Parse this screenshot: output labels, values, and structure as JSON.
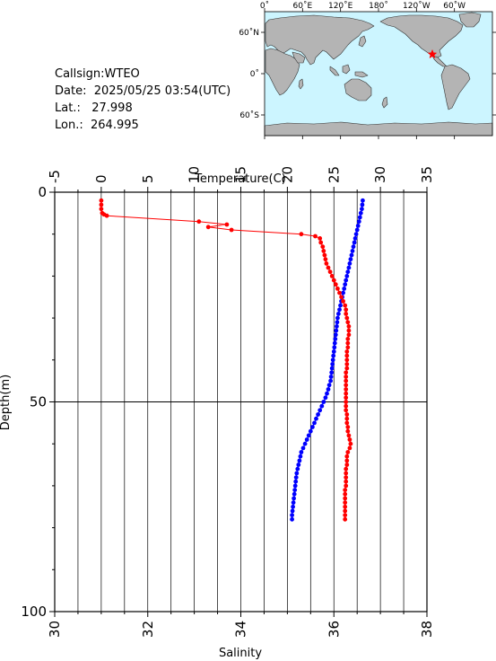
{
  "header": {
    "callsign_label": "Callsign:",
    "callsign": "WTEO",
    "date_label": "Date:",
    "date": "2025/05/25 03:54(UTC)",
    "lat_label": "Lat.:",
    "lat": "27.998",
    "lon_label": "Lon.:",
    "lon": "264.995"
  },
  "map": {
    "lon_ticks": [
      "0˚",
      "60˚E",
      "120˚E",
      "180˚",
      "120˚W",
      "60˚W"
    ],
    "lat_ticks": [
      "60˚N",
      "0˚",
      "60˚S"
    ],
    "ocean_color": "#ccf5ff",
    "land_color": "#b4b4b4",
    "marker_color": "#ff0000",
    "marker_icon": "star-icon"
  },
  "chart_data": {
    "type": "line",
    "ylabel": "Depth(m)",
    "ylim": [
      100,
      0
    ],
    "yticks": [
      "0",
      "50",
      "100"
    ],
    "grid": true,
    "temperature": {
      "xlabel": "Temperature(C)",
      "xlim": [
        -5,
        35
      ],
      "xticks": [
        "-5",
        "0",
        "5",
        "10",
        "15",
        "20",
        "25",
        "30",
        "35"
      ],
      "color": "#ff0000",
      "depth": [
        2,
        3,
        4,
        5,
        5.3,
        5.6,
        7,
        7.7,
        8.3,
        9,
        10,
        10.5,
        11,
        12,
        13,
        14,
        15,
        16,
        17,
        18,
        19,
        20,
        21,
        22,
        23,
        24,
        25,
        26,
        27,
        28,
        29,
        30,
        31,
        32,
        33,
        34,
        35,
        36,
        37,
        38,
        39,
        40,
        41,
        42,
        43,
        44,
        45,
        46,
        47,
        48,
        49,
        50,
        51,
        52,
        53,
        54,
        55,
        56,
        57,
        58,
        59,
        60,
        61,
        62,
        63,
        64,
        65,
        66,
        67,
        68,
        69,
        70,
        71,
        72,
        73,
        74,
        75,
        76,
        77,
        78
      ],
      "values": [
        0.0,
        0.0,
        0.0,
        0.1,
        0.3,
        0.6,
        10.5,
        13.5,
        11.5,
        14.0,
        21.5,
        23.0,
        23.5,
        23.6,
        23.8,
        23.9,
        24.0,
        24.1,
        24.2,
        24.4,
        24.6,
        24.8,
        25.0,
        25.2,
        25.4,
        25.6,
        25.8,
        26.0,
        26.2,
        26.3,
        26.3,
        26.4,
        26.5,
        26.6,
        26.6,
        26.6,
        26.5,
        26.5,
        26.5,
        26.4,
        26.4,
        26.4,
        26.4,
        26.4,
        26.3,
        26.3,
        26.3,
        26.3,
        26.3,
        26.3,
        26.3,
        26.3,
        26.3,
        26.3,
        26.4,
        26.4,
        26.4,
        26.5,
        26.5,
        26.6,
        26.7,
        26.8,
        26.7,
        26.5,
        26.4,
        26.4,
        26.4,
        26.3,
        26.3,
        26.3,
        26.3,
        26.3,
        26.2,
        26.2,
        26.2,
        26.2,
        26.2,
        26.2,
        26.2,
        26.2
      ]
    },
    "salinity": {
      "xlabel": "Salinity",
      "xlim": [
        30,
        38
      ],
      "xticks": [
        "30",
        "32",
        "34",
        "36",
        "38"
      ],
      "color": "#0000ff",
      "depth": [
        2,
        3,
        4,
        5,
        6,
        7,
        8,
        9,
        10,
        11,
        12,
        13,
        14,
        15,
        16,
        17,
        18,
        19,
        20,
        21,
        22,
        23,
        24,
        25,
        26,
        27,
        28,
        29,
        30,
        31,
        32,
        33,
        34,
        35,
        36,
        37,
        38,
        39,
        40,
        41,
        42,
        43,
        44,
        45,
        46,
        47,
        48,
        49,
        50,
        51,
        52,
        53,
        54,
        55,
        56,
        57,
        58,
        59,
        60,
        61,
        62,
        63,
        64,
        65,
        66,
        67,
        68,
        69,
        70,
        71,
        72,
        73,
        74,
        75,
        76,
        77,
        78
      ],
      "values": [
        36.62,
        36.61,
        36.6,
        36.58,
        36.56,
        36.54,
        36.52,
        36.5,
        36.48,
        36.46,
        36.44,
        36.42,
        36.4,
        36.38,
        36.36,
        36.34,
        36.32,
        36.3,
        36.28,
        36.26,
        36.24,
        36.22,
        36.2,
        36.18,
        36.16,
        36.14,
        36.12,
        36.1,
        36.08,
        36.07,
        36.06,
        36.05,
        36.04,
        36.03,
        36.02,
        36.01,
        36.0,
        35.99,
        35.98,
        35.97,
        35.96,
        35.95,
        35.94,
        35.93,
        35.9,
        35.88,
        35.85,
        35.82,
        35.78,
        35.74,
        35.7,
        35.66,
        35.62,
        35.58,
        35.54,
        35.5,
        35.46,
        35.42,
        35.38,
        35.34,
        35.3,
        35.28,
        35.26,
        35.24,
        35.22,
        35.2,
        35.19,
        35.18,
        35.17,
        35.16,
        35.15,
        35.14,
        35.13,
        35.12,
        35.11,
        35.1,
        35.1
      ]
    }
  }
}
